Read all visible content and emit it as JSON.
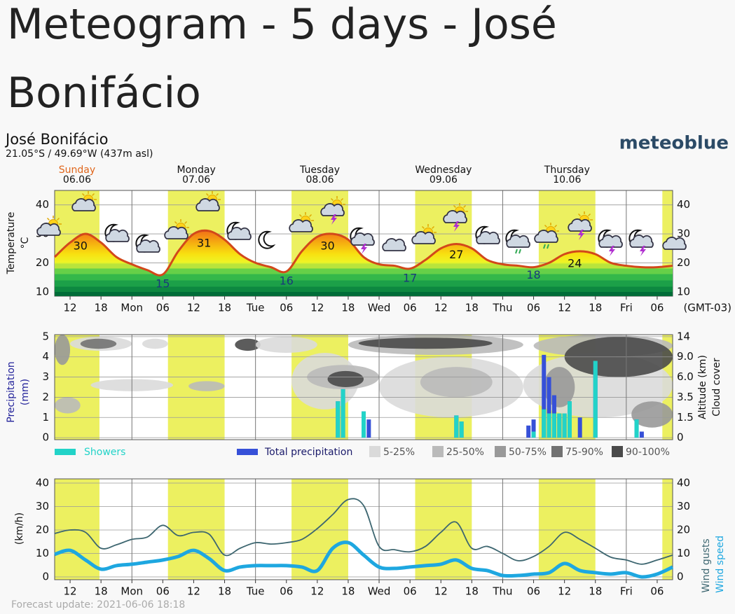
{
  "page": {
    "title": "Meteogram - 5 days - José Bonifácio",
    "location": "José Bonifácio",
    "coords": "21.05°S / 49.69°W (437m asl)",
    "brand": "meteoblue",
    "footer": "Forecast update: 2021-06-06 18:18",
    "days": [
      {
        "name": "Sunday",
        "date": "06.06"
      },
      {
        "name": "Monday",
        "date": "07.06"
      },
      {
        "name": "Tuesday",
        "date": "08.06"
      },
      {
        "name": "Wednesday",
        "date": "09.06"
      },
      {
        "name": "Thursday",
        "date": "10.06"
      }
    ],
    "daylight": [
      [
        9,
        17.7
      ],
      [
        31,
        42
      ],
      [
        55,
        66
      ],
      [
        79,
        90
      ],
      [
        103,
        114
      ],
      [
        127,
        129
      ]
    ]
  },
  "chart_data": [
    {
      "type": "line",
      "ylabel": "Temperature",
      "yunit": "°C",
      "x_note": "(GMT-03)",
      "xlim": [
        9,
        129
      ],
      "xticks": [
        12,
        18,
        {
          "value": 24,
          "label": "Mon"
        },
        {
          "value": 30,
          "label": "06"
        },
        {
          "value": 36,
          "label": "12"
        },
        {
          "value": 42,
          "label": "18"
        },
        {
          "value": 48,
          "label": "Tue"
        },
        {
          "value": 54,
          "label": "06"
        },
        {
          "value": 60,
          "label": "12"
        },
        {
          "value": 66,
          "label": "18"
        },
        {
          "value": 72,
          "label": "Wed"
        },
        {
          "value": 78,
          "label": "06"
        },
        {
          "value": 84,
          "label": "12"
        },
        {
          "value": 90,
          "label": "18"
        },
        {
          "value": 96,
          "label": "Thu"
        },
        {
          "value": 102,
          "label": "06"
        },
        {
          "value": 108,
          "label": "12"
        },
        {
          "value": 114,
          "label": "18"
        },
        {
          "value": 120,
          "label": "Fri"
        },
        {
          "value": 126,
          "label": "06"
        }
      ],
      "ylim": [
        8.5,
        45
      ],
      "yticks": [
        10,
        20,
        30,
        40
      ],
      "grid": true,
      "x": [
        9,
        12,
        15,
        18,
        21,
        24,
        27,
        30,
        33,
        36,
        39,
        42,
        45,
        48,
        51,
        54,
        57,
        60,
        63,
        66,
        69,
        72,
        75,
        78,
        81,
        84,
        87,
        90,
        93,
        96,
        99,
        102,
        105,
        108,
        111,
        114,
        117,
        120,
        123,
        126,
        129
      ],
      "series": [
        {
          "color": "#d2481a",
          "values": [
            22,
            27,
            30,
            27,
            22,
            19.5,
            17.5,
            16,
            24,
            30,
            31,
            28,
            23,
            20,
            18.5,
            17,
            24,
            29,
            30,
            28,
            22,
            19.5,
            19,
            18,
            21,
            25,
            26.5,
            25,
            21,
            19.5,
            19,
            18.5,
            20,
            23,
            24,
            23,
            20,
            19,
            18.5,
            18.5,
            19
          ]
        }
      ],
      "extremes": [
        {
          "x": 14,
          "value": 30
        },
        {
          "x": 30,
          "value": 15
        },
        {
          "x": 38,
          "value": 31
        },
        {
          "x": 54,
          "value": 16
        },
        {
          "x": 62,
          "value": 30
        },
        {
          "x": 78,
          "value": 17
        },
        {
          "x": 87,
          "value": 27
        },
        {
          "x": 102,
          "value": 18
        },
        {
          "x": 110,
          "value": 24
        }
      ]
    },
    {
      "type": "bar",
      "ylabel": "Precipitation",
      "yunit": "(mm)",
      "y2label": "Altitude (km)",
      "cloud_label": "Cloud cover",
      "xlim": [
        9,
        129
      ],
      "ylim": [
        -0.1,
        5.1
      ],
      "yticks": [
        0,
        1,
        2,
        3,
        4,
        5
      ],
      "y2ticks": [
        0,
        1.5,
        3.5,
        {
          "value": 6,
          "label": "6.0"
        },
        {
          "value": 9,
          "label": "9.0"
        },
        14
      ],
      "x": [
        64,
        65,
        69,
        70,
        87,
        88,
        101,
        102,
        104,
        105,
        106,
        107,
        108,
        109,
        111,
        114,
        122,
        123
      ],
      "series": [
        {
          "name": "Total precipitation",
          "color": "#3650d8",
          "values": [
            1.8,
            2.4,
            1.3,
            0.9,
            1.1,
            0.8,
            0.6,
            0.9,
            4.1,
            3.0,
            2.1,
            1.2,
            1.2,
            1.8,
            1.0,
            3.8,
            0.9,
            0.3
          ]
        },
        {
          "name": "Showers",
          "color": "#22d3c8",
          "values": [
            1.8,
            2.4,
            1.3,
            0,
            1.1,
            0.8,
            0,
            0.3,
            1.4,
            1.2,
            1.2,
            1.2,
            1.2,
            1.8,
            0,
            3.8,
            0.9,
            0
          ]
        }
      ],
      "cloud_cover": {
        "classes": [
          {
            "name": "5-25%",
            "color": "#dadada"
          },
          {
            "name": "25-50%",
            "color": "#bababa"
          },
          {
            "name": "50-75%",
            "color": "#999999"
          },
          {
            "name": "75-90%",
            "color": "#727272"
          },
          {
            "name": "90-100%",
            "color": "#4a4a4a"
          }
        ],
        "areas": [
          {
            "x": [
              9,
              12
            ],
            "y": [
              3.6,
              5.1
            ],
            "class": 2
          },
          {
            "x": [
              12,
              24
            ],
            "y": [
              4.3,
              5.0
            ],
            "class": 0
          },
          {
            "x": [
              14,
              21
            ],
            "y": [
              4.4,
              4.9
            ],
            "class": 3
          },
          {
            "x": [
              26,
              31
            ],
            "y": [
              4.4,
              4.9
            ],
            "class": 0
          },
          {
            "x": [
              16,
              32
            ],
            "y": [
              2.3,
              2.9
            ],
            "class": 0
          },
          {
            "x": [
              35,
              42
            ],
            "y": [
              2.3,
              2.8
            ],
            "class": 1
          },
          {
            "x": [
              9,
              14
            ],
            "y": [
              1.2,
              2.0
            ],
            "class": 1
          },
          {
            "x": [
              44,
              49
            ],
            "y": [
              4.3,
              4.9
            ],
            "class": 4
          },
          {
            "x": [
              48,
              60
            ],
            "y": [
              4.2,
              5.0
            ],
            "class": 0
          },
          {
            "x": [
              55,
              68
            ],
            "y": [
              1.4,
              4.2
            ],
            "class": 0
          },
          {
            "x": [
              58,
              72
            ],
            "y": [
              2.4,
              3.6
            ],
            "class": 1
          },
          {
            "x": [
              62,
              69
            ],
            "y": [
              2.5,
              3.3
            ],
            "class": 4
          },
          {
            "x": [
              66,
              100
            ],
            "y": [
              4.1,
              5.1
            ],
            "class": 1
          },
          {
            "x": [
              68,
              94
            ],
            "y": [
              4.4,
              4.95
            ],
            "class": 4
          },
          {
            "x": [
              72,
              100
            ],
            "y": [
              1.0,
              4.0
            ],
            "class": 0
          },
          {
            "x": [
              80,
              94
            ],
            "y": [
              2.0,
              3.5
            ],
            "class": 1
          },
          {
            "x": [
              100,
              129
            ],
            "y": [
              1.0,
              4.2
            ],
            "class": 0
          },
          {
            "x": [
              102,
              129
            ],
            "y": [
              4.0,
              5.1
            ],
            "class": 1
          },
          {
            "x": [
              108,
              129
            ],
            "y": [
              3.0,
              5.0
            ],
            "class": 4
          },
          {
            "x": [
              104,
              110
            ],
            "y": [
              1.5,
              3.5
            ],
            "class": 2
          },
          {
            "x": [
              121,
              129
            ],
            "y": [
              0.5,
              1.8
            ],
            "class": 2
          }
        ]
      }
    },
    {
      "type": "line",
      "ylabel": "(km/h)",
      "xlim": [
        9,
        129
      ],
      "xticks": [
        12,
        18,
        {
          "value": 24,
          "label": "Mon"
        },
        {
          "value": 30,
          "label": "06"
        },
        {
          "value": 36,
          "label": "12"
        },
        {
          "value": 42,
          "label": "18"
        },
        {
          "value": 48,
          "label": "Tue"
        },
        {
          "value": 54,
          "label": "06"
        },
        {
          "value": 60,
          "label": "12"
        },
        {
          "value": 66,
          "label": "18"
        },
        {
          "value": 72,
          "label": "Wed"
        },
        {
          "value": 78,
          "label": "06"
        },
        {
          "value": 84,
          "label": "12"
        },
        {
          "value": 90,
          "label": "18"
        },
        {
          "value": 96,
          "label": "Thu"
        },
        {
          "value": 102,
          "label": "06"
        },
        {
          "value": 108,
          "label": "12"
        },
        {
          "value": 114,
          "label": "18"
        },
        {
          "value": 120,
          "label": "Fri"
        },
        {
          "value": 126,
          "label": "06"
        }
      ],
      "ylim": [
        -1.2,
        41.8
      ],
      "yticks": [
        0,
        10,
        20,
        30,
        40
      ],
      "grid": true,
      "x": [
        9,
        12,
        15,
        18,
        21,
        24,
        27,
        30,
        33,
        36,
        39,
        42,
        45,
        48,
        51,
        54,
        57,
        60,
        63,
        66,
        69,
        72,
        75,
        78,
        81,
        84,
        87,
        90,
        93,
        96,
        99,
        102,
        105,
        108,
        111,
        114,
        117,
        120,
        123,
        126,
        129
      ],
      "series": [
        {
          "name": "Wind gusts",
          "color": "#3d6670",
          "values": [
            18.5,
            20,
            19,
            12.2,
            13.7,
            16,
            17,
            22,
            17.6,
            19,
            18.2,
            9.3,
            12.2,
            14.6,
            14,
            14.6,
            16,
            20.6,
            26.6,
            33,
            30.4,
            13,
            11.6,
            10.7,
            13,
            19,
            23.3,
            12.2,
            13,
            10,
            6.9,
            8.7,
            13,
            19,
            16,
            12.2,
            8.4,
            7.2,
            5.4,
            7.2,
            9.3
          ]
        },
        {
          "name": "Wind speed",
          "color": "#1ea7e0",
          "values": [
            9.6,
            11.3,
            7.2,
            3.3,
            4.8,
            5.4,
            6.3,
            7.2,
            8.7,
            11.3,
            7.8,
            2.7,
            4.2,
            4.8,
            4.8,
            4.8,
            4.2,
            2.7,
            12.2,
            14.6,
            9.3,
            4.2,
            3.6,
            4.2,
            4.8,
            5.4,
            7.2,
            3.6,
            2.7,
            0.6,
            0.6,
            1.2,
            1.8,
            5.7,
            2.7,
            1.8,
            1.2,
            1.8,
            0,
            1.2,
            4.2
          ]
        }
      ]
    }
  ]
}
